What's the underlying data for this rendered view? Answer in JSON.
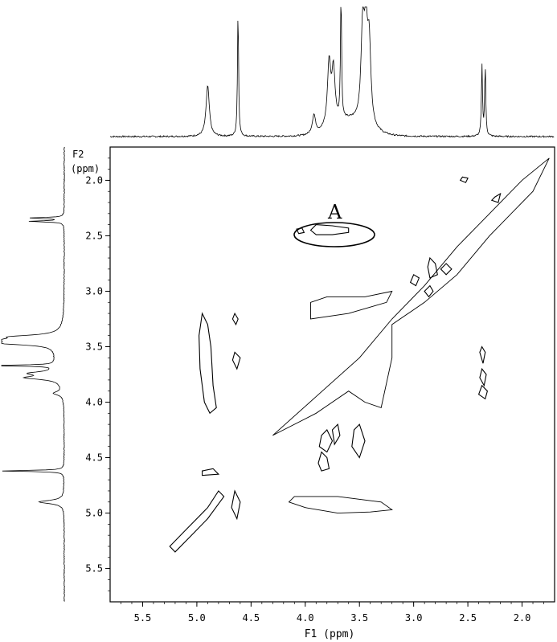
{
  "chart_data": {
    "type": "2d-nmr-contour",
    "title": "",
    "annotation": "A",
    "annotation_region": {
      "f1_range": [
        3.55,
        4.1
      ],
      "f2_center": 2.45
    },
    "x_axis": {
      "label": "F1 (ppm)",
      "range": [
        5.8,
        1.7
      ],
      "ticks": [
        "5.5",
        "5.0",
        "4.5",
        "4.0",
        "3.5",
        "3.0",
        "2.5",
        "2.0"
      ],
      "tick_values": [
        5.5,
        5.0,
        4.5,
        4.0,
        3.5,
        3.0,
        2.5,
        2.0
      ]
    },
    "y_axis": {
      "label_line1": "F2",
      "label_line2": "(ppm)",
      "range": [
        1.7,
        5.8
      ],
      "ticks": [
        "2.0",
        "2.5",
        "3.0",
        "3.5",
        "4.0",
        "4.5",
        "5.0",
        "5.5"
      ],
      "tick_values": [
        2.0,
        2.5,
        3.0,
        3.5,
        4.0,
        4.5,
        5.0,
        5.5
      ]
    },
    "projection_peaks_ppm": [
      {
        "ppm": 4.9,
        "intensity": 0.4
      },
      {
        "ppm": 4.62,
        "intensity": 1.0
      },
      {
        "ppm": 3.92,
        "intensity": 0.15
      },
      {
        "ppm": 3.78,
        "intensity": 0.5
      },
      {
        "ppm": 3.74,
        "intensity": 0.42
      },
      {
        "ppm": 3.67,
        "intensity": 1.0
      },
      {
        "ppm": 3.47,
        "intensity": 0.72
      },
      {
        "ppm": 3.44,
        "intensity": 0.68
      },
      {
        "ppm": 3.41,
        "intensity": 0.6
      },
      {
        "ppm": 2.37,
        "intensity": 0.55
      },
      {
        "ppm": 2.34,
        "intensity": 0.55
      }
    ],
    "contours": [
      {
        "name": "diagonal",
        "points": [
          [
            4.3,
            4.3
          ],
          [
            3.9,
            3.95
          ],
          [
            3.5,
            3.6
          ],
          [
            3.2,
            3.25
          ],
          [
            2.9,
            2.95
          ],
          [
            2.6,
            2.6
          ],
          [
            2.3,
            2.3
          ],
          [
            2.0,
            2.0
          ],
          [
            1.75,
            1.8
          ],
          [
            1.9,
            2.1
          ],
          [
            2.3,
            2.5
          ],
          [
            2.6,
            2.85
          ],
          [
            2.9,
            3.1
          ],
          [
            3.2,
            3.3
          ],
          [
            3.2,
            3.6
          ],
          [
            3.3,
            4.05
          ],
          [
            3.45,
            4.0
          ],
          [
            3.6,
            3.9
          ],
          [
            3.9,
            4.1
          ],
          [
            4.3,
            4.3
          ]
        ]
      },
      {
        "name": "diagonal-upper",
        "points": [
          [
            3.2,
            3.0
          ],
          [
            3.45,
            3.05
          ],
          [
            3.8,
            3.05
          ],
          [
            3.95,
            3.1
          ],
          [
            3.95,
            3.25
          ],
          [
            3.6,
            3.2
          ],
          [
            3.25,
            3.1
          ],
          [
            3.2,
            3.0
          ]
        ]
      },
      {
        "name": "h1-row-band",
        "points": [
          [
            4.1,
            4.85
          ],
          [
            3.7,
            4.85
          ],
          [
            3.3,
            4.9
          ],
          [
            3.2,
            4.97
          ],
          [
            3.4,
            4.99
          ],
          [
            3.7,
            5.0
          ],
          [
            4.0,
            4.95
          ],
          [
            4.15,
            4.9
          ],
          [
            4.1,
            4.85
          ]
        ]
      },
      {
        "name": "cross-peak-a",
        "points": [
          [
            3.95,
            2.45
          ],
          [
            3.9,
            2.4
          ],
          [
            3.75,
            2.41
          ],
          [
            3.6,
            2.43
          ],
          [
            3.6,
            2.47
          ],
          [
            3.75,
            2.49
          ],
          [
            3.9,
            2.49
          ],
          [
            3.95,
            2.45
          ]
        ]
      },
      {
        "name": "cross-peak-b",
        "points": [
          [
            4.08,
            2.44
          ],
          [
            4.03,
            2.43
          ],
          [
            4.01,
            2.47
          ],
          [
            4.06,
            2.48
          ],
          [
            4.08,
            2.44
          ]
        ]
      },
      {
        "name": "cross-peak-c",
        "points": [
          [
            4.95,
            3.2
          ],
          [
            4.9,
            3.3
          ],
          [
            4.87,
            3.5
          ],
          [
            4.85,
            3.85
          ],
          [
            4.82,
            4.05
          ],
          [
            4.88,
            4.1
          ],
          [
            4.93,
            4.0
          ],
          [
            4.97,
            3.7
          ],
          [
            4.98,
            3.4
          ],
          [
            4.95,
            3.2
          ]
        ]
      },
      {
        "name": "cross-peak-d",
        "points": [
          [
            5.25,
            5.3
          ],
          [
            5.1,
            5.15
          ],
          [
            4.9,
            4.95
          ],
          [
            4.8,
            4.8
          ],
          [
            4.75,
            4.85
          ],
          [
            4.9,
            5.05
          ],
          [
            5.05,
            5.2
          ],
          [
            5.2,
            5.35
          ],
          [
            5.25,
            5.3
          ]
        ]
      },
      {
        "name": "cross-peak-e",
        "points": [
          [
            4.65,
            3.2
          ],
          [
            4.62,
            3.25
          ],
          [
            4.64,
            3.3
          ],
          [
            4.67,
            3.25
          ],
          [
            4.65,
            3.2
          ]
        ]
      },
      {
        "name": "cross-peak-f",
        "points": [
          [
            4.65,
            3.55
          ],
          [
            4.6,
            3.6
          ],
          [
            4.63,
            3.7
          ],
          [
            4.67,
            3.62
          ],
          [
            4.65,
            3.55
          ]
        ]
      },
      {
        "name": "cross-peak-g",
        "points": [
          [
            4.65,
            4.8
          ],
          [
            4.6,
            4.9
          ],
          [
            4.63,
            5.05
          ],
          [
            4.68,
            4.95
          ],
          [
            4.65,
            4.8
          ]
        ]
      },
      {
        "name": "cross-peak-h",
        "points": [
          [
            4.95,
            4.62
          ],
          [
            4.85,
            4.6
          ],
          [
            4.8,
            4.65
          ],
          [
            4.95,
            4.66
          ],
          [
            4.95,
            4.62
          ]
        ]
      },
      {
        "name": "cross-peak-i",
        "points": [
          [
            3.85,
            4.3
          ],
          [
            3.8,
            4.25
          ],
          [
            3.75,
            4.35
          ],
          [
            3.8,
            4.45
          ],
          [
            3.87,
            4.4
          ],
          [
            3.85,
            4.3
          ]
        ]
      },
      {
        "name": "cross-peak-j",
        "points": [
          [
            3.75,
            4.25
          ],
          [
            3.7,
            4.2
          ],
          [
            3.68,
            4.3
          ],
          [
            3.73,
            4.38
          ],
          [
            3.75,
            4.25
          ]
        ]
      },
      {
        "name": "cross-peak-k",
        "points": [
          [
            3.55,
            4.25
          ],
          [
            3.5,
            4.2
          ],
          [
            3.45,
            4.35
          ],
          [
            3.5,
            4.5
          ],
          [
            3.57,
            4.4
          ],
          [
            3.55,
            4.25
          ]
        ]
      },
      {
        "name": "cross-peak-l",
        "points": [
          [
            3.85,
            4.45
          ],
          [
            3.8,
            4.5
          ],
          [
            3.78,
            4.6
          ],
          [
            3.85,
            4.62
          ],
          [
            3.88,
            4.55
          ],
          [
            3.85,
            4.45
          ]
        ]
      },
      {
        "name": "cross-peak-m",
        "points": [
          [
            2.85,
            2.7
          ],
          [
            2.8,
            2.75
          ],
          [
            2.78,
            2.85
          ],
          [
            2.85,
            2.88
          ],
          [
            2.87,
            2.78
          ],
          [
            2.85,
            2.7
          ]
        ]
      },
      {
        "name": "cross-peak-n",
        "points": [
          [
            2.7,
            2.75
          ],
          [
            2.65,
            2.8
          ],
          [
            2.7,
            2.85
          ],
          [
            2.75,
            2.8
          ],
          [
            2.7,
            2.75
          ]
        ]
      },
      {
        "name": "cross-peak-o",
        "points": [
          [
            3.0,
            2.85
          ],
          [
            2.95,
            2.88
          ],
          [
            2.98,
            2.95
          ],
          [
            3.03,
            2.92
          ],
          [
            3.0,
            2.85
          ]
        ]
      },
      {
        "name": "cross-peak-p",
        "points": [
          [
            2.85,
            2.95
          ],
          [
            2.82,
            3.0
          ],
          [
            2.86,
            3.05
          ],
          [
            2.9,
            3.0
          ],
          [
            2.85,
            2.95
          ]
        ]
      },
      {
        "name": "cross-peak-q",
        "points": [
          [
            2.37,
            3.5
          ],
          [
            2.34,
            3.55
          ],
          [
            2.36,
            3.65
          ],
          [
            2.39,
            3.55
          ],
          [
            2.37,
            3.5
          ]
        ]
      },
      {
        "name": "cross-peak-r",
        "points": [
          [
            2.37,
            3.7
          ],
          [
            2.33,
            3.75
          ],
          [
            2.35,
            3.85
          ],
          [
            2.39,
            3.78
          ],
          [
            2.37,
            3.7
          ]
        ]
      },
      {
        "name": "cross-peak-s",
        "points": [
          [
            2.37,
            3.85
          ],
          [
            2.32,
            3.9
          ],
          [
            2.34,
            3.97
          ],
          [
            2.4,
            3.93
          ],
          [
            2.37,
            3.85
          ]
        ]
      },
      {
        "name": "cross-peak-t",
        "points": [
          [
            2.55,
            1.97
          ],
          [
            2.5,
            1.98
          ],
          [
            2.52,
            2.02
          ],
          [
            2.57,
            2.0
          ],
          [
            2.55,
            1.97
          ]
        ]
      },
      {
        "name": "cross-peak-u",
        "points": [
          [
            2.25,
            2.15
          ],
          [
            2.2,
            2.12
          ],
          [
            2.22,
            2.2
          ],
          [
            2.28,
            2.18
          ],
          [
            2.25,
            2.15
          ]
        ]
      }
    ]
  }
}
